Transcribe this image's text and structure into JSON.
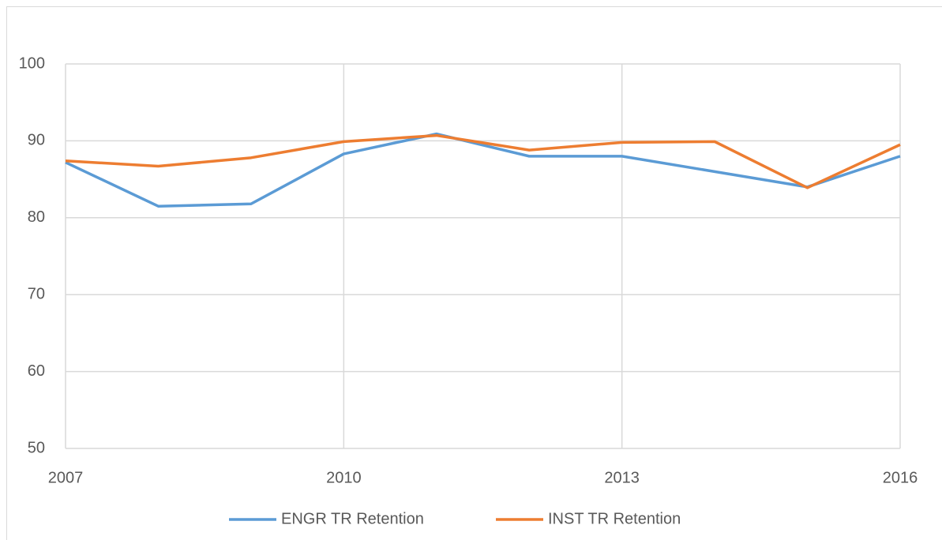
{
  "chart_data": {
    "type": "line",
    "x": [
      2007,
      2008,
      2009,
      2010,
      2011,
      2012,
      2013,
      2014,
      2015,
      2016
    ],
    "series": [
      {
        "name": "ENGR TR Retention",
        "color": "#5b9bd5",
        "values": [
          87.2,
          81.5,
          81.8,
          88.3,
          90.9,
          88.0,
          88.0,
          86.0,
          84.0,
          88.0
        ]
      },
      {
        "name": "INST TR Retention",
        "color": "#ed7d31",
        "values": [
          87.4,
          86.7,
          87.8,
          89.9,
          90.7,
          88.8,
          89.8,
          89.9,
          83.9,
          89.5
        ]
      }
    ],
    "xlim": [
      2007,
      2016
    ],
    "xticks": [
      2007,
      2010,
      2013,
      2016
    ],
    "ylim": [
      50,
      100
    ],
    "yticks": [
      50,
      60,
      70,
      80,
      90,
      100
    ],
    "grid": true,
    "legend": "bottom"
  }
}
